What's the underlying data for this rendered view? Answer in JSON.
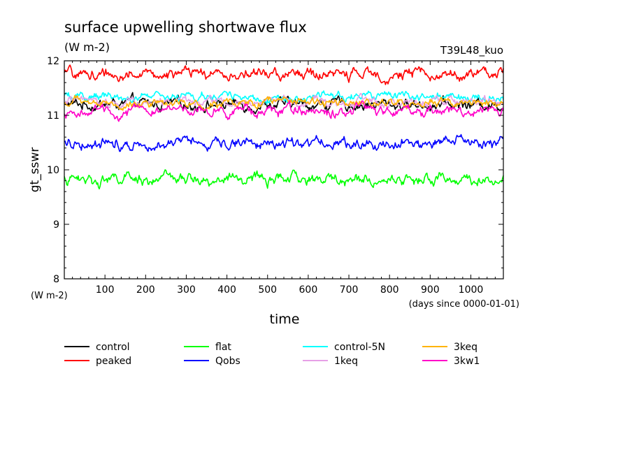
{
  "chart_data": {
    "type": "line",
    "title": "surface upwelling shortwave flux",
    "subtitle": "(W m-2)",
    "run_label": "T39L48_kuo",
    "ylabel": "gt_sswr",
    "yunit_label": "(W m-2)",
    "xlabel": "time",
    "xunit_label": "(days since 0000-01-01)",
    "xlim": [
      0,
      1080
    ],
    "ylim": [
      8,
      12
    ],
    "xticks": [
      100,
      200,
      300,
      400,
      500,
      600,
      700,
      800,
      900,
      1000
    ],
    "yticks": [
      8,
      9,
      10,
      11,
      12
    ],
    "grid": false,
    "legend_position": "bottom",
    "series": [
      {
        "name": "control",
        "color": "#000000",
        "mean": 11.2,
        "amplitude": 0.13,
        "x": [
          0,
          1080
        ],
        "y": [
          11.2,
          11.2
        ]
      },
      {
        "name": "peaked",
        "color": "#ff0000",
        "mean": 11.75,
        "amplitude": 0.13,
        "x": [
          0,
          1080
        ],
        "y": [
          11.75,
          11.75
        ]
      },
      {
        "name": "flat",
        "color": "#00ff00",
        "mean": 9.82,
        "amplitude": 0.13,
        "x": [
          0,
          1080
        ],
        "y": [
          9.82,
          9.82
        ]
      },
      {
        "name": "Qobs",
        "color": "#0000ff",
        "mean": 10.5,
        "amplitude": 0.13,
        "x": [
          0,
          1080
        ],
        "y": [
          10.5,
          10.5
        ]
      },
      {
        "name": "control-5N",
        "color": "#00ffff",
        "mean": 11.33,
        "amplitude": 0.1,
        "x": [
          0,
          1080
        ],
        "y": [
          11.33,
          11.33
        ]
      },
      {
        "name": "1keq",
        "color": "#e6a0e6",
        "mean": 11.25,
        "amplitude": 0.1,
        "x": [
          0,
          1080
        ],
        "y": [
          11.25,
          11.25
        ]
      },
      {
        "name": "3keq",
        "color": "#ffb400",
        "mean": 11.22,
        "amplitude": 0.1,
        "x": [
          0,
          1080
        ],
        "y": [
          11.22,
          11.22
        ]
      },
      {
        "name": "3kw1",
        "color": "#ff00c8",
        "mean": 11.08,
        "amplitude": 0.12,
        "x": [
          0,
          1080
        ],
        "y": [
          11.08,
          11.08
        ]
      }
    ]
  }
}
